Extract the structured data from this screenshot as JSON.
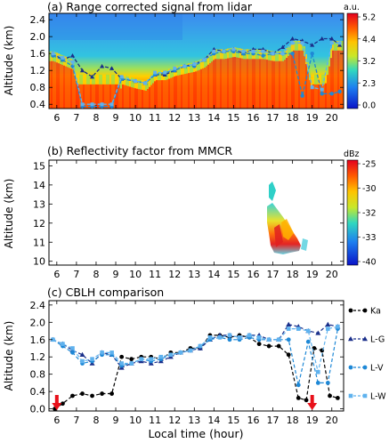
{
  "chart_data": [
    {
      "type": "heatmap",
      "title": "(a) Range corrected signal from lidar",
      "ylabel": "Altitude (km)",
      "xlabel": "",
      "x_ticks": [
        "6",
        "7",
        "8",
        "9",
        "10",
        "11",
        "12",
        "13",
        "14",
        "15",
        "16",
        "17",
        "18",
        "19",
        "20"
      ],
      "xlim": [
        5.6,
        20.6
      ],
      "y_ticks": [
        "0.4",
        "0.8",
        "1.2",
        "1.6",
        "2.0",
        "2.4"
      ],
      "ylim": [
        0.3,
        2.55
      ],
      "colorbar": {
        "unit": "a.u.",
        "ticks": [
          "5.2",
          "4.4",
          "3.2",
          "2.3",
          "0.0"
        ],
        "range_top": 5.2,
        "range_bottom": 0.0
      },
      "overlay": {
        "note": "overlaid lidar CBLH retrieval lines (L-G, L-V, L-W)",
        "lg": [
          [
            5.8,
            1.6
          ],
          [
            6.3,
            1.45
          ],
          [
            6.8,
            1.55
          ],
          [
            7.3,
            1.2
          ],
          [
            7.8,
            1.05
          ],
          [
            8.3,
            1.3
          ],
          [
            8.8,
            1.25
          ],
          [
            9.3,
            1.0
          ],
          [
            10.0,
            0.95
          ],
          [
            10.5,
            0.9
          ],
          [
            11.0,
            1.1
          ],
          [
            11.5,
            1.1
          ],
          [
            12.0,
            1.2
          ],
          [
            12.5,
            1.3
          ],
          [
            13.0,
            1.35
          ],
          [
            13.5,
            1.45
          ],
          [
            14.0,
            1.7
          ],
          [
            14.5,
            1.65
          ],
          [
            15.0,
            1.7
          ],
          [
            15.5,
            1.6
          ],
          [
            16.0,
            1.7
          ],
          [
            16.5,
            1.7
          ],
          [
            17.0,
            1.6
          ],
          [
            17.5,
            1.75
          ],
          [
            18.0,
            1.95
          ],
          [
            18.5,
            1.9
          ],
          [
            19.0,
            1.8
          ],
          [
            19.5,
            1.95
          ],
          [
            20.0,
            1.95
          ],
          [
            20.4,
            1.8
          ]
        ],
        "lv": [
          [
            5.8,
            1.55
          ],
          [
            6.3,
            1.45
          ],
          [
            6.8,
            1.3
          ],
          [
            7.3,
            0.35
          ],
          [
            7.8,
            0.35
          ],
          [
            8.3,
            0.35
          ],
          [
            8.8,
            0.35
          ],
          [
            9.3,
            1.0
          ],
          [
            10.0,
            0.95
          ],
          [
            10.5,
            0.9
          ],
          [
            11.0,
            1.1
          ],
          [
            11.5,
            1.15
          ],
          [
            12.0,
            1.2
          ],
          [
            12.5,
            1.3
          ],
          [
            13.0,
            1.3
          ],
          [
            13.5,
            1.45
          ],
          [
            14.0,
            1.6
          ],
          [
            14.5,
            1.65
          ],
          [
            15.0,
            1.65
          ],
          [
            15.5,
            1.6
          ],
          [
            16.0,
            1.6
          ],
          [
            16.5,
            1.55
          ],
          [
            17.0,
            1.6
          ],
          [
            17.5,
            1.6
          ],
          [
            18.0,
            1.6
          ],
          [
            18.5,
            0.6
          ],
          [
            19.0,
            1.6
          ],
          [
            19.5,
            0.65
          ],
          [
            20.0,
            0.65
          ],
          [
            20.4,
            0.7
          ]
        ],
        "lw": [
          [
            5.8,
            1.6
          ],
          [
            6.3,
            1.5
          ],
          [
            6.8,
            1.4
          ],
          [
            7.3,
            0.4
          ],
          [
            7.8,
            0.4
          ],
          [
            8.3,
            0.4
          ],
          [
            8.8,
            0.4
          ],
          [
            9.3,
            1.05
          ],
          [
            10.0,
            0.95
          ],
          [
            10.5,
            0.9
          ],
          [
            11.0,
            1.15
          ],
          [
            11.5,
            1.15
          ],
          [
            12.0,
            1.25
          ],
          [
            12.5,
            1.3
          ],
          [
            13.0,
            1.35
          ],
          [
            13.5,
            1.45
          ],
          [
            14.0,
            1.65
          ],
          [
            14.5,
            1.65
          ],
          [
            15.0,
            1.7
          ],
          [
            15.5,
            1.65
          ],
          [
            16.0,
            1.65
          ],
          [
            16.5,
            1.65
          ],
          [
            17.0,
            1.6
          ],
          [
            17.5,
            1.6
          ],
          [
            18.0,
            1.85
          ],
          [
            18.5,
            1.85
          ],
          [
            19.0,
            0.8
          ],
          [
            19.5,
            0.75
          ],
          [
            20.0,
            1.85
          ],
          [
            20.4,
            1.85
          ]
        ]
      }
    },
    {
      "type": "heatmap",
      "title": "(b) Reflectivity factor from MMCR",
      "ylabel": "Altitude (km)",
      "xlabel": "",
      "x_ticks": [
        "6",
        "7",
        "8",
        "9",
        "10",
        "11",
        "12",
        "13",
        "14",
        "15",
        "16",
        "17",
        "18",
        "19",
        "20"
      ],
      "xlim": [
        5.6,
        20.6
      ],
      "y_ticks": [
        "10",
        "11",
        "12",
        "13",
        "14",
        "15"
      ],
      "ylim": [
        9.8,
        15.3
      ],
      "colorbar": {
        "unit": "dBz",
        "ticks": [
          "-25",
          "-30",
          "-32",
          "-33",
          "-40"
        ],
        "range_top": -25,
        "range_bottom": -40
      }
    },
    {
      "type": "line",
      "title": "(c) CBLH comparison",
      "xlabel": "Local time (hour)",
      "ylabel": "Altitude (km)",
      "x_ticks": [
        "6",
        "7",
        "8",
        "9",
        "10",
        "11",
        "12",
        "13",
        "14",
        "15",
        "16",
        "17",
        "18",
        "19",
        "20"
      ],
      "xlim": [
        5.6,
        20.6
      ],
      "y_ticks": [
        "0.0",
        "0.4",
        "0.8",
        "1.2",
        "1.6",
        "2.0",
        "2.4"
      ],
      "ylim": [
        -0.05,
        2.5
      ],
      "legend_placement": "right",
      "arrows_at_x": [
        6.0,
        19.0
      ],
      "series": [
        {
          "name": "Ka",
          "color": "#000000",
          "marker": "circle",
          "points": [
            [
              5.9,
              0.0
            ],
            [
              6.3,
              0.12
            ],
            [
              6.8,
              0.3
            ],
            [
              7.3,
              0.35
            ],
            [
              7.8,
              0.3
            ],
            [
              8.3,
              0.35
            ],
            [
              8.8,
              0.35
            ],
            [
              9.3,
              1.2
            ],
            [
              9.8,
              1.15
            ],
            [
              10.3,
              1.2
            ],
            [
              10.8,
              1.2
            ],
            [
              11.3,
              1.15
            ],
            [
              11.8,
              1.3
            ],
            [
              12.3,
              1.3
            ],
            [
              12.8,
              1.4
            ],
            [
              13.3,
              1.4
            ],
            [
              13.8,
              1.7
            ],
            [
              14.3,
              1.7
            ],
            [
              14.8,
              1.65
            ],
            [
              15.3,
              1.7
            ],
            [
              15.8,
              1.65
            ],
            [
              16.3,
              1.5
            ],
            [
              16.8,
              1.45
            ],
            [
              17.3,
              1.45
            ],
            [
              17.8,
              1.25
            ],
            [
              18.3,
              0.25
            ],
            [
              18.7,
              0.2
            ],
            [
              19.1,
              1.4
            ],
            [
              19.5,
              1.35
            ],
            [
              19.9,
              0.3
            ],
            [
              20.3,
              0.25
            ]
          ]
        },
        {
          "name": "L-G",
          "color": "#1a2f8a",
          "marker": "triangle",
          "points": [
            [
              5.8,
              1.6
            ],
            [
              6.3,
              1.5
            ],
            [
              6.8,
              1.35
            ],
            [
              7.3,
              1.25
            ],
            [
              7.8,
              1.05
            ],
            [
              8.3,
              1.3
            ],
            [
              8.8,
              1.25
            ],
            [
              9.3,
              0.95
            ],
            [
              9.8,
              1.05
            ],
            [
              10.3,
              1.1
            ],
            [
              10.8,
              1.05
            ],
            [
              11.3,
              1.1
            ],
            [
              11.8,
              1.2
            ],
            [
              12.3,
              1.3
            ],
            [
              12.8,
              1.35
            ],
            [
              13.3,
              1.4
            ],
            [
              13.8,
              1.6
            ],
            [
              14.3,
              1.7
            ],
            [
              14.8,
              1.7
            ],
            [
              15.3,
              1.65
            ],
            [
              15.8,
              1.7
            ],
            [
              16.3,
              1.7
            ],
            [
              16.8,
              1.6
            ],
            [
              17.3,
              1.6
            ],
            [
              17.8,
              1.95
            ],
            [
              18.3,
              1.9
            ],
            [
              18.8,
              1.8
            ],
            [
              19.3,
              1.75
            ],
            [
              19.8,
              1.95
            ],
            [
              20.3,
              1.9
            ]
          ]
        },
        {
          "name": "L-V",
          "color": "#1e88d6",
          "marker": "circle",
          "points": [
            [
              5.8,
              1.6
            ],
            [
              6.3,
              1.45
            ],
            [
              6.8,
              1.3
            ],
            [
              7.3,
              1.05
            ],
            [
              7.8,
              1.1
            ],
            [
              8.3,
              1.25
            ],
            [
              8.8,
              1.25
            ],
            [
              9.3,
              1.0
            ],
            [
              9.8,
              1.05
            ],
            [
              10.3,
              1.15
            ],
            [
              10.8,
              1.1
            ],
            [
              11.3,
              1.15
            ],
            [
              11.8,
              1.25
            ],
            [
              12.3,
              1.3
            ],
            [
              12.8,
              1.35
            ],
            [
              13.3,
              1.45
            ],
            [
              13.8,
              1.6
            ],
            [
              14.3,
              1.65
            ],
            [
              14.8,
              1.6
            ],
            [
              15.3,
              1.6
            ],
            [
              15.8,
              1.65
            ],
            [
              16.3,
              1.6
            ],
            [
              16.8,
              1.6
            ],
            [
              17.3,
              1.6
            ],
            [
              17.8,
              1.6
            ],
            [
              18.3,
              0.55
            ],
            [
              18.8,
              1.55
            ],
            [
              19.3,
              0.6
            ],
            [
              19.8,
              0.6
            ],
            [
              20.3,
              1.85
            ]
          ]
        },
        {
          "name": "L-W",
          "color": "#5fb2ee",
          "marker": "square",
          "points": [
            [
              5.8,
              1.6
            ],
            [
              6.3,
              1.5
            ],
            [
              6.8,
              1.4
            ],
            [
              7.3,
              1.1
            ],
            [
              7.8,
              1.15
            ],
            [
              8.3,
              1.3
            ],
            [
              8.8,
              1.3
            ],
            [
              9.3,
              1.05
            ],
            [
              9.8,
              1.05
            ],
            [
              10.3,
              1.15
            ],
            [
              10.8,
              1.15
            ],
            [
              11.3,
              1.2
            ],
            [
              11.8,
              1.25
            ],
            [
              12.3,
              1.3
            ],
            [
              12.8,
              1.35
            ],
            [
              13.3,
              1.45
            ],
            [
              13.8,
              1.65
            ],
            [
              14.3,
              1.65
            ],
            [
              14.8,
              1.7
            ],
            [
              15.3,
              1.65
            ],
            [
              15.8,
              1.7
            ],
            [
              16.3,
              1.65
            ],
            [
              16.8,
              1.6
            ],
            [
              17.3,
              1.6
            ],
            [
              17.8,
              1.85
            ],
            [
              18.3,
              1.85
            ],
            [
              18.8,
              1.8
            ],
            [
              19.3,
              0.85
            ],
            [
              19.8,
              1.85
            ],
            [
              20.3,
              1.9
            ]
          ]
        }
      ]
    }
  ]
}
